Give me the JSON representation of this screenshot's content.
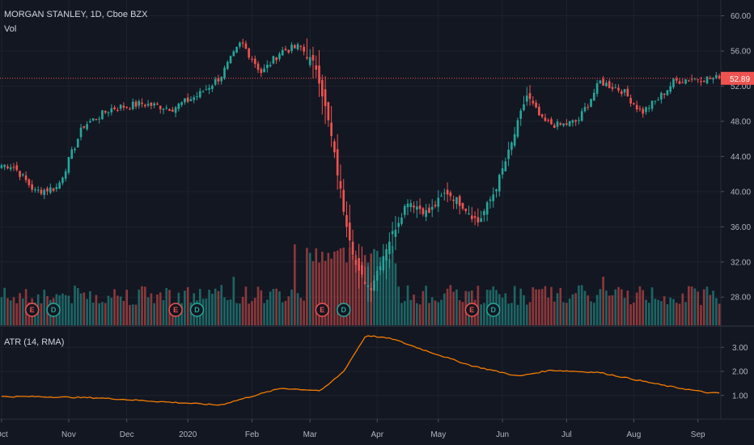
{
  "header": {
    "title": "MORGAN STANLEY, 1D, Cboe BZX",
    "vol_label": "Vol"
  },
  "atr_label": "ATR (14, RMA)",
  "last_price": "52.89",
  "colors": {
    "background": "#131722",
    "up": "#26a69a",
    "down": "#ef5350",
    "atr_line": "#f57c00",
    "last_price_tag": "#ef5350",
    "grid": "#1e222d"
  },
  "chart_data": {
    "type": "candlestick",
    "price_axis": {
      "ylim": [
        24.8,
        61.8
      ],
      "ticks": [
        "60.00",
        "56.00",
        "52.00",
        "48.00",
        "44.00",
        "40.00",
        "36.00",
        "32.00",
        "28.00"
      ]
    },
    "atr_axis": {
      "ylim": [
        0.05,
        3.85
      ],
      "ticks": [
        "3.00",
        "2.00",
        "1.00"
      ]
    },
    "x_ticks": [
      "Oct",
      "Nov",
      "Dec",
      "2020",
      "Feb",
      "Mar",
      "Apr",
      "May",
      "Jun",
      "Jul",
      "Aug",
      "Sep"
    ],
    "events": [
      {
        "label": "E",
        "index": 10,
        "color": "#ef5350"
      },
      {
        "label": "D",
        "index": 17,
        "color": "#26a69a"
      },
      {
        "label": "E",
        "index": 57,
        "color": "#ef5350"
      },
      {
        "label": "D",
        "index": 64,
        "color": "#26a69a"
      },
      {
        "label": "E",
        "index": 105,
        "color": "#ef5350"
      },
      {
        "label": "D",
        "index": 112,
        "color": "#26a69a"
      },
      {
        "label": "E",
        "index": 154,
        "color": "#ef5350"
      },
      {
        "label": "D",
        "index": 161,
        "color": "#26a69a"
      }
    ],
    "price_series": [
      {
        "x": "Oct",
        "y": 43.0
      },
      {
        "x": "Oct",
        "y": 40.0
      },
      {
        "x": "Oct",
        "y": 40.5
      },
      {
        "x": "Nov",
        "y": 47.5
      },
      {
        "x": "Nov",
        "y": 49.5
      },
      {
        "x": "Dec",
        "y": 50.0
      },
      {
        "x": "Dec",
        "y": 49.5
      },
      {
        "x": "2020",
        "y": 51.0
      },
      {
        "x": "2020",
        "y": 53.0
      },
      {
        "x": "2020",
        "y": 57.0
      },
      {
        "x": "Feb",
        "y": 53.5
      },
      {
        "x": "Feb",
        "y": 56.0
      },
      {
        "x": "Feb",
        "y": 56.5
      },
      {
        "x": "Mar",
        "y": 54.0
      },
      {
        "x": "Mar",
        "y": 47.0
      },
      {
        "x": "Mar",
        "y": 38.0
      },
      {
        "x": "Mar",
        "y": 31.0
      },
      {
        "x": "Mar",
        "y": 29.0
      },
      {
        "x": "Apr",
        "y": 34.0
      },
      {
        "x": "Apr",
        "y": 39.0
      },
      {
        "x": "Apr",
        "y": 37.5
      },
      {
        "x": "May",
        "y": 40.0
      },
      {
        "x": "May",
        "y": 38.5
      },
      {
        "x": "May",
        "y": 36.5
      },
      {
        "x": "May",
        "y": 40.0
      },
      {
        "x": "Jun",
        "y": 45.0
      },
      {
        "x": "Jun",
        "y": 51.0
      },
      {
        "x": "Jun",
        "y": 48.0
      },
      {
        "x": "Jun",
        "y": 47.5
      },
      {
        "x": "Jul",
        "y": 48.0
      },
      {
        "x": "Jul",
        "y": 52.5
      },
      {
        "x": "Jul",
        "y": 51.5
      },
      {
        "x": "Aug",
        "y": 49.0
      },
      {
        "x": "Aug",
        "y": 50.5
      },
      {
        "x": "Aug",
        "y": 52.5
      },
      {
        "x": "Aug",
        "y": 52.89
      }
    ],
    "atr_series": [
      {
        "x": "Oct",
        "y": 0.95
      },
      {
        "x": "Nov",
        "y": 0.9
      },
      {
        "x": "Dec",
        "y": 0.75
      },
      {
        "x": "2020",
        "y": 0.6
      },
      {
        "x": "Feb",
        "y": 1.3
      },
      {
        "x": "Mar",
        "y": 1.2
      },
      {
        "x": "Mar",
        "y": 2.0
      },
      {
        "x": "Mar",
        "y": 3.5
      },
      {
        "x": "Apr",
        "y": 3.35
      },
      {
        "x": "Apr",
        "y": 2.9
      },
      {
        "x": "May",
        "y": 2.25
      },
      {
        "x": "Jun",
        "y": 1.8
      },
      {
        "x": "Jun",
        "y": 2.05
      },
      {
        "x": "Jul",
        "y": 1.95
      },
      {
        "x": "Aug",
        "y": 1.4
      },
      {
        "x": "Sep",
        "y": 1.1
      }
    ]
  }
}
